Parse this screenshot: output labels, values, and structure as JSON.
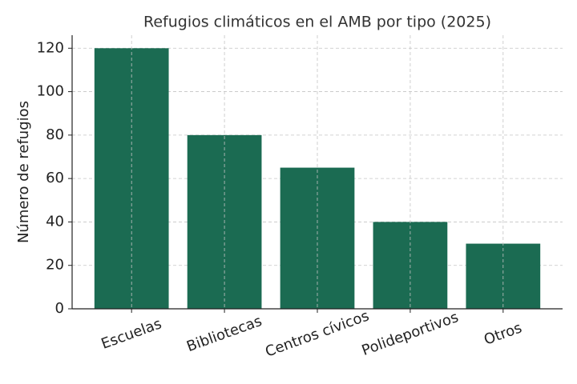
{
  "chart_data": {
    "type": "bar",
    "title": "Refugios climáticos en el AMB por tipo (2025)",
    "y_label": "Número de refugios",
    "categories": [
      "Escuelas",
      "Bibliotecas",
      "Centros cívicos",
      "Polideportivos",
      "Otros"
    ],
    "values": [
      120,
      80,
      65,
      40,
      30
    ],
    "color": "#1b6b52",
    "ylim": [
      0,
      126
    ],
    "yticks": [
      0,
      20,
      40,
      60,
      80,
      100,
      120
    ],
    "grid": true
  }
}
